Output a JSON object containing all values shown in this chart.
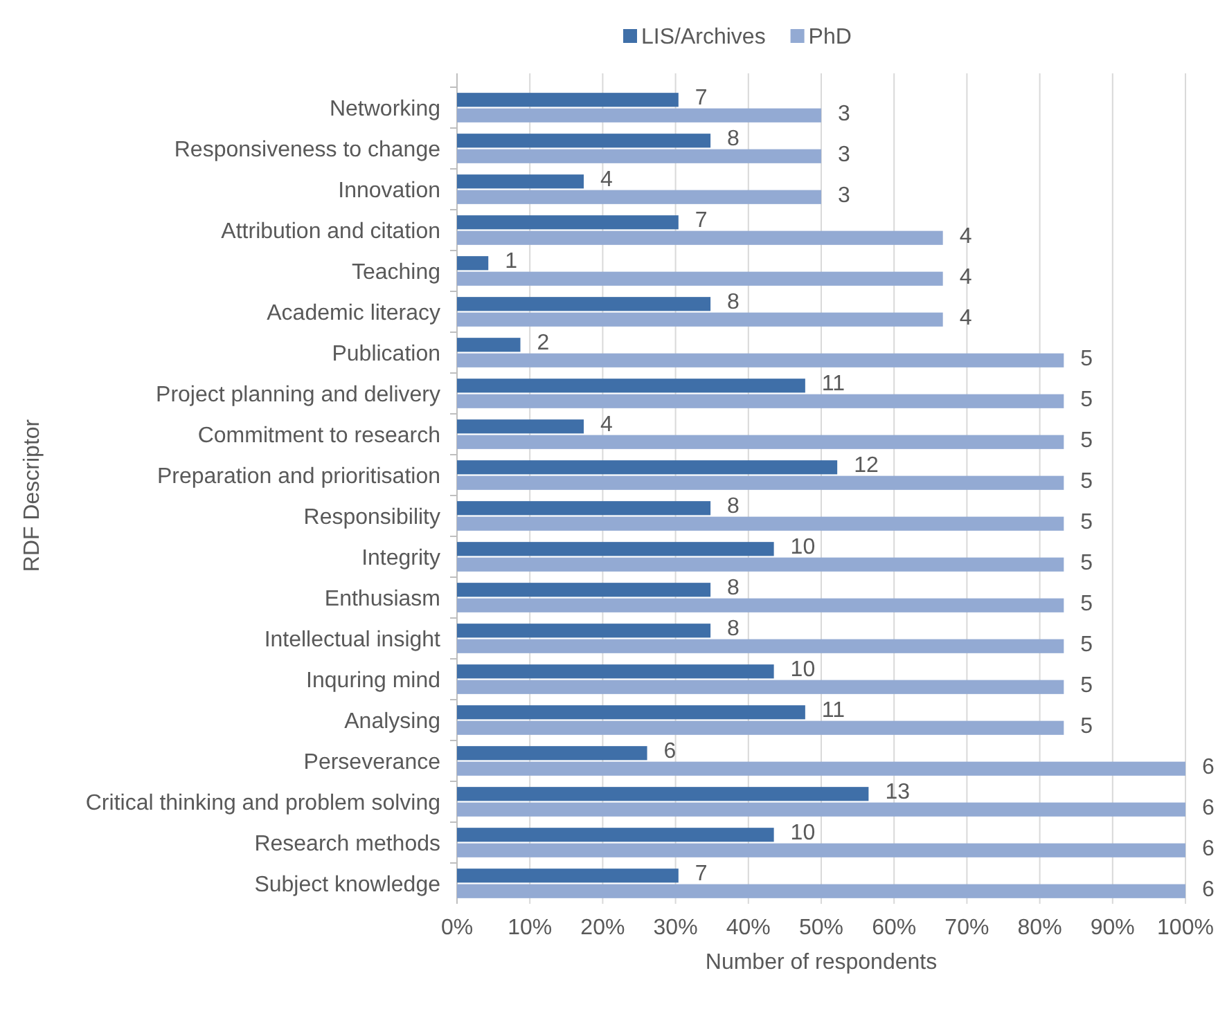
{
  "chart_data": {
    "type": "bar",
    "orientation": "horizontal",
    "xlabel": "Number of respondents",
    "ylabel": "RDF Descriptor",
    "categories": [
      "Networking",
      "Responsiveness to change",
      "Innovation",
      "Attribution and citation",
      "Teaching",
      "Academic literacy",
      "Publication",
      "Project planning and delivery",
      "Commitment to research",
      "Preparation and prioritisation",
      "Responsibility",
      "Integrity",
      "Enthusiasm",
      "Intellectual insight",
      "Inquring mind",
      "Analysing",
      "Perseverance",
      "Critical thinking and problem solving",
      "Research methods",
      "Subject knowledge"
    ],
    "series": [
      {
        "name": "LIS/Archives",
        "color": "#3f6fa8",
        "values": [
          30.4,
          34.8,
          17.4,
          30.4,
          4.3,
          34.8,
          8.7,
          47.8,
          17.4,
          52.2,
          34.8,
          43.5,
          34.8,
          34.8,
          43.5,
          47.8,
          26.1,
          56.5,
          43.5,
          30.4
        ]
      },
      {
        "name": "PhD",
        "color": "#93aad3",
        "values": [
          50,
          50,
          50,
          66.7,
          66.7,
          66.7,
          83.3,
          83.3,
          83.3,
          83.3,
          83.3,
          83.3,
          83.3,
          83.3,
          83.3,
          83.3,
          100,
          100,
          100,
          100
        ]
      }
    ],
    "annotations": [
      {
        "text": "7",
        "x": 30.4,
        "y": "Networking"
      },
      {
        "text": "8",
        "x": 34.8,
        "y": "Responsiveness to change"
      },
      {
        "text": "4",
        "x": 17.4,
        "y": "Innovation"
      },
      {
        "text": "7",
        "x": 30.4,
        "y": "Attribution and citation"
      },
      {
        "text": "1",
        "x": 4.3,
        "y": "Teaching"
      },
      {
        "text": "8",
        "x": 34.8,
        "y": "Academic literacy"
      },
      {
        "text": "2",
        "x": 8.7,
        "y": "Publication"
      },
      {
        "text": "11",
        "x": 47.8,
        "y": "Project planning and delivery"
      },
      {
        "text": "4",
        "x": 17.4,
        "y": "Commitment to research"
      },
      {
        "text": "12",
        "x": 52.2,
        "y": "Preparation and prioritisation"
      },
      {
        "text": "8",
        "x": 34.8,
        "y": "Responsibility"
      },
      {
        "text": "10",
        "x": 43.5,
        "y": "Integrity"
      },
      {
        "text": "8",
        "x": 34.8,
        "y": "Enthusiasm"
      },
      {
        "text": "8",
        "x": 34.8,
        "y": "Intellectual insight"
      },
      {
        "text": "10",
        "x": 43.5,
        "y": "Inquring mind"
      },
      {
        "text": "11",
        "x": 47.8,
        "y": "Analysing"
      },
      {
        "text": "6",
        "x": 26.1,
        "y": "Perseverance"
      },
      {
        "text": "13",
        "x": 56.5,
        "y": "Critical thinking and problem solving"
      },
      {
        "text": "10",
        "x": 43.5,
        "y": "Research methods"
      },
      {
        "text": "7",
        "x": 30.4,
        "y": "Subject knowledge"
      },
      {
        "text": "3",
        "x": 50,
        "y": "Networking"
      },
      {
        "text": "3",
        "x": 50,
        "y": "Responsiveness to change"
      },
      {
        "text": "3",
        "x": 50,
        "y": "Innovation"
      },
      {
        "text": "4",
        "x": 66.7,
        "y": "Attribution and citation"
      },
      {
        "text": "4",
        "x": 66.7,
        "y": "Teaching"
      },
      {
        "text": "4",
        "x": 66.7,
        "y": "Academic literacy"
      },
      {
        "text": "5",
        "x": 83.3,
        "y": "Publication"
      },
      {
        "text": "5",
        "x": 83.3,
        "y": "Project planning and delivery"
      },
      {
        "text": "5",
        "x": 83.3,
        "y": "Commitment to research"
      },
      {
        "text": "5",
        "x": 83.3,
        "y": "Preparation and prioritisation"
      },
      {
        "text": "5",
        "x": 83.3,
        "y": "Responsibility"
      },
      {
        "text": "5",
        "x": 83.3,
        "y": "Integrity"
      },
      {
        "text": "5",
        "x": 83.3,
        "y": "Enthusiasm"
      },
      {
        "text": "5",
        "x": 83.3,
        "y": "Intellectual insight"
      },
      {
        "text": "5",
        "x": 83.3,
        "y": "Inquring mind"
      },
      {
        "text": "5",
        "x": 83.3,
        "y": "Analysing"
      },
      {
        "text": "6",
        "x": 100,
        "y": "Perseverance"
      },
      {
        "text": "6",
        "x": 100,
        "y": "Critical thinking and problem solving"
      },
      {
        "text": "6",
        "x": 100,
        "y": "Research methods"
      },
      {
        "text": "6",
        "x": 100,
        "y": "Subject knowledge"
      }
    ],
    "xlim": [
      0,
      100
    ],
    "xticks": [
      {
        "value": 0,
        "label": "0%"
      },
      {
        "value": 10,
        "label": "10%"
      },
      {
        "value": 20,
        "label": "20%"
      },
      {
        "value": 30,
        "label": "30%"
      },
      {
        "value": 40,
        "label": "40%"
      },
      {
        "value": 50,
        "label": "50%"
      },
      {
        "value": 60,
        "label": "60%"
      },
      {
        "value": 70,
        "label": "70%"
      },
      {
        "value": 80,
        "label": "80%"
      },
      {
        "value": 90,
        "label": "90%"
      },
      {
        "value": 100,
        "label": "100%"
      }
    ],
    "grid": "x",
    "legend": "top"
  }
}
